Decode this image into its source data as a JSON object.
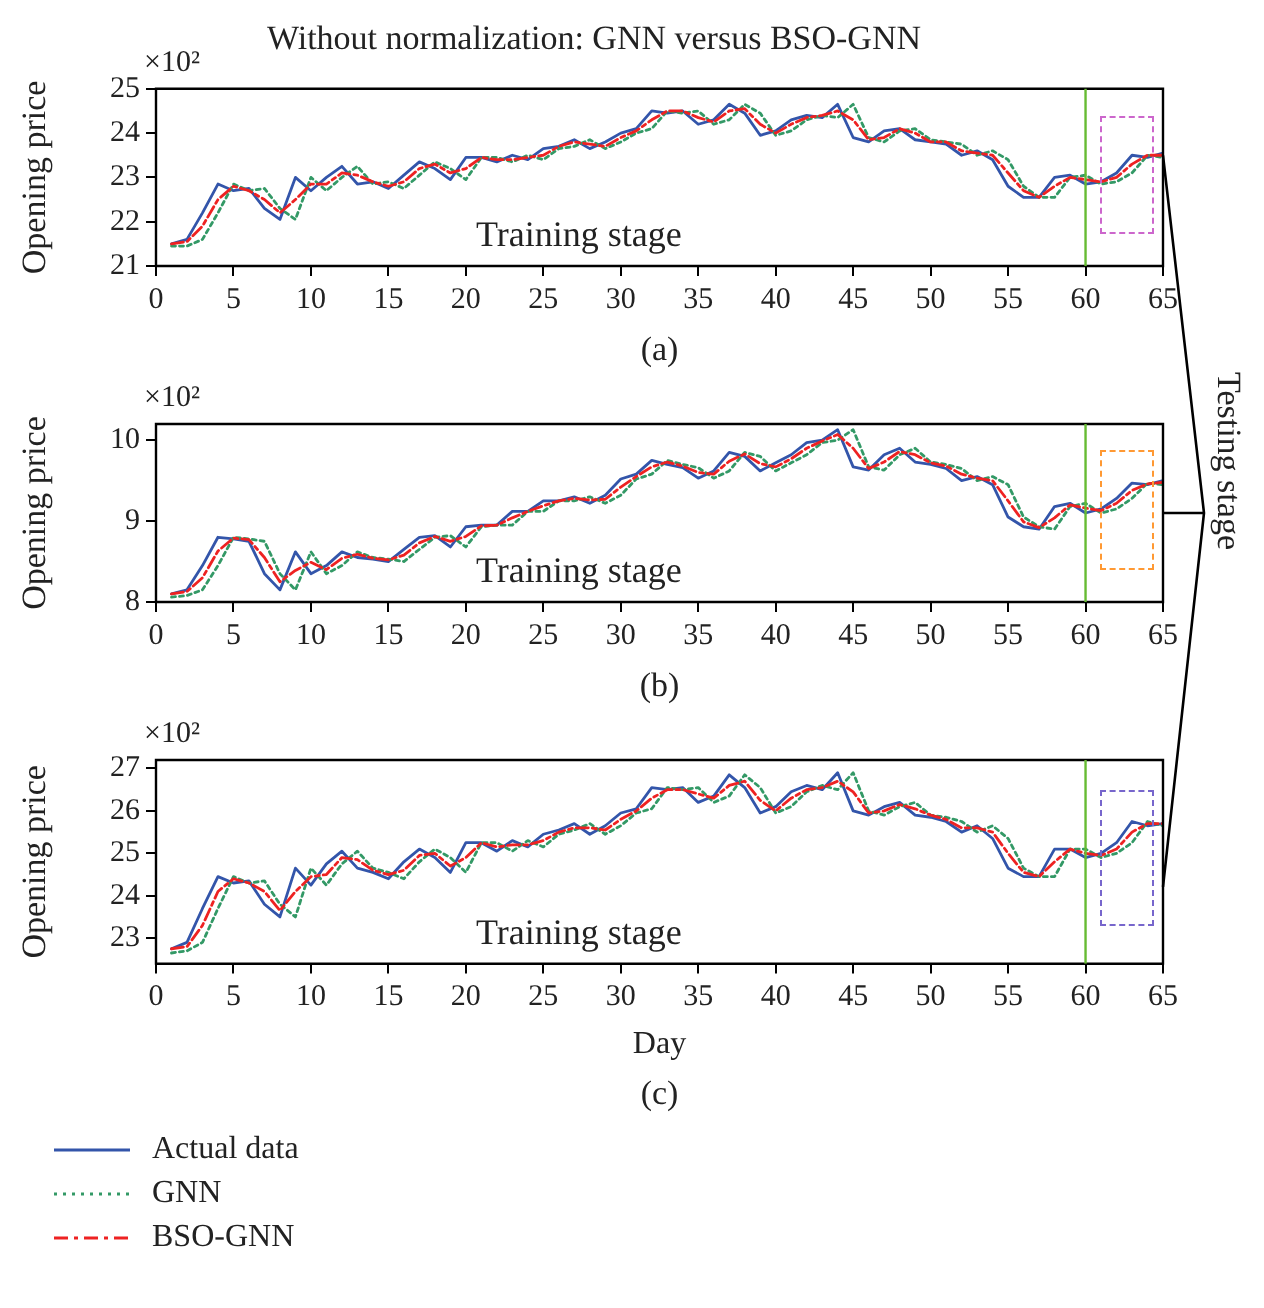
{
  "chart_data": [
    {
      "type": "line",
      "title": "Without normalization: GNN versus BSO-GNN",
      "ylabel": "Opening price",
      "annotations": [
        "Training stage",
        "×10²",
        "(a)"
      ],
      "x": [
        1,
        2,
        3,
        4,
        5,
        6,
        7,
        8,
        9,
        10,
        11,
        12,
        13,
        14,
        15,
        16,
        17,
        18,
        19,
        20,
        21,
        22,
        23,
        24,
        25,
        26,
        27,
        28,
        29,
        30,
        31,
        32,
        33,
        34,
        35,
        36,
        37,
        38,
        39,
        40,
        41,
        42,
        43,
        44,
        45,
        46,
        47,
        48,
        49,
        50,
        51,
        52,
        53,
        54,
        55,
        56,
        57,
        58,
        59,
        60,
        61,
        62,
        63,
        64,
        65
      ],
      "xlim": [
        0,
        65
      ],
      "xticks": [
        0,
        5,
        10,
        15,
        20,
        25,
        30,
        35,
        40,
        45,
        50,
        55,
        60,
        65
      ],
      "ylim": [
        21,
        25
      ],
      "yticks": [
        21,
        22,
        23,
        24,
        25
      ],
      "ref_lines": [
        {
          "axis": "x",
          "value": 60,
          "color": "#66bb33"
        }
      ],
      "series": [
        {
          "color": "#3355aa",
          "line_style": "solid",
          "values": [
            21.5,
            21.6,
            22.2,
            22.85,
            22.7,
            22.75,
            22.3,
            22.05,
            23.0,
            22.7,
            23.0,
            23.25,
            22.85,
            22.9,
            22.75,
            23.05,
            23.35,
            23.2,
            22.95,
            23.45,
            23.45,
            23.35,
            23.5,
            23.4,
            23.65,
            23.7,
            23.85,
            23.65,
            23.8,
            24.0,
            24.1,
            24.5,
            24.45,
            24.5,
            24.2,
            24.3,
            24.65,
            24.45,
            23.95,
            24.05,
            24.3,
            24.4,
            24.35,
            24.65,
            23.9,
            23.8,
            24.05,
            24.1,
            23.85,
            23.8,
            23.75,
            23.5,
            23.6,
            23.4,
            22.8,
            22.55,
            22.55,
            23.0,
            23.05,
            22.85,
            22.9,
            23.1,
            23.5,
            23.45,
            23.55
          ]
        },
        {
          "color": "#339966",
          "line_style": "dotted",
          "values": [
            21.45,
            21.45,
            21.6,
            22.2,
            22.85,
            22.7,
            22.75,
            22.3,
            22.05,
            23.0,
            22.7,
            23.0,
            23.25,
            22.85,
            22.9,
            22.75,
            23.05,
            23.35,
            23.2,
            22.95,
            23.45,
            23.45,
            23.35,
            23.5,
            23.4,
            23.65,
            23.7,
            23.85,
            23.65,
            23.8,
            24.0,
            24.1,
            24.5,
            24.45,
            24.5,
            24.2,
            24.3,
            24.65,
            24.45,
            23.95,
            24.05,
            24.3,
            24.4,
            24.35,
            24.65,
            23.9,
            23.8,
            24.05,
            24.1,
            23.85,
            23.8,
            23.75,
            23.5,
            23.6,
            23.4,
            22.8,
            22.55,
            22.55,
            23.0,
            23.05,
            22.85,
            22.9,
            23.1,
            23.5,
            23.45
          ]
        },
        {
          "color": "#ee2222",
          "line_style": "dashed",
          "values": [
            21.5,
            21.55,
            21.9,
            22.5,
            22.8,
            22.7,
            22.5,
            22.2,
            22.5,
            22.85,
            22.85,
            23.1,
            23.05,
            22.9,
            22.8,
            22.9,
            23.2,
            23.3,
            23.1,
            23.2,
            23.45,
            23.4,
            23.4,
            23.45,
            23.5,
            23.7,
            23.8,
            23.75,
            23.7,
            23.9,
            24.05,
            24.3,
            24.5,
            24.5,
            24.35,
            24.25,
            24.5,
            24.55,
            24.2,
            24.0,
            24.2,
            24.35,
            24.4,
            24.5,
            24.3,
            23.85,
            23.9,
            24.1,
            24.0,
            23.8,
            23.8,
            23.6,
            23.55,
            23.5,
            23.1,
            22.7,
            22.55,
            22.8,
            23.0,
            22.95,
            22.9,
            23.0,
            23.3,
            23.5,
            23.5
          ]
        }
      ]
    },
    {
      "type": "line",
      "ylabel": "Opening price",
      "annotations": [
        "Training stage",
        "×10²",
        "(b)",
        "Testing stage"
      ],
      "x": [
        1,
        2,
        3,
        4,
        5,
        6,
        7,
        8,
        9,
        10,
        11,
        12,
        13,
        14,
        15,
        16,
        17,
        18,
        19,
        20,
        21,
        22,
        23,
        24,
        25,
        26,
        27,
        28,
        29,
        30,
        31,
        32,
        33,
        34,
        35,
        36,
        37,
        38,
        39,
        40,
        41,
        42,
        43,
        44,
        45,
        46,
        47,
        48,
        49,
        50,
        51,
        52,
        53,
        54,
        55,
        56,
        57,
        58,
        59,
        60,
        61,
        62,
        63,
        64,
        65
      ],
      "xlim": [
        0,
        65
      ],
      "xticks": [
        0,
        5,
        10,
        15,
        20,
        25,
        30,
        35,
        40,
        45,
        50,
        55,
        60,
        65
      ],
      "ylim": [
        8,
        10.2
      ],
      "yticks": [
        8,
        9,
        10
      ],
      "ref_lines": [
        {
          "axis": "x",
          "value": 60,
          "color": "#66bb33"
        }
      ],
      "series": [
        {
          "color": "#3355aa",
          "line_style": "solid",
          "values": [
            8.1,
            8.15,
            8.45,
            8.8,
            8.78,
            8.75,
            8.35,
            8.15,
            8.62,
            8.35,
            8.45,
            8.62,
            8.55,
            8.53,
            8.5,
            8.65,
            8.8,
            8.82,
            8.68,
            8.93,
            8.95,
            8.95,
            9.12,
            9.12,
            9.25,
            9.25,
            9.3,
            9.22,
            9.32,
            9.52,
            9.58,
            9.75,
            9.7,
            9.66,
            9.53,
            9.62,
            9.85,
            9.8,
            9.62,
            9.72,
            9.82,
            9.97,
            10.0,
            10.13,
            9.67,
            9.63,
            9.82,
            9.9,
            9.73,
            9.7,
            9.65,
            9.5,
            9.55,
            9.45,
            9.05,
            8.93,
            8.9,
            9.18,
            9.22,
            9.1,
            9.15,
            9.28,
            9.47,
            9.45,
            9.5
          ]
        },
        {
          "color": "#339966",
          "line_style": "dotted",
          "values": [
            8.06,
            8.08,
            8.15,
            8.45,
            8.8,
            8.78,
            8.75,
            8.35,
            8.15,
            8.62,
            8.35,
            8.45,
            8.62,
            8.55,
            8.53,
            8.5,
            8.65,
            8.8,
            8.82,
            8.68,
            8.93,
            8.95,
            8.95,
            9.12,
            9.12,
            9.25,
            9.25,
            9.3,
            9.22,
            9.32,
            9.52,
            9.58,
            9.75,
            9.7,
            9.66,
            9.53,
            9.62,
            9.85,
            9.8,
            9.62,
            9.72,
            9.82,
            9.97,
            10.0,
            10.13,
            9.67,
            9.63,
            9.82,
            9.9,
            9.73,
            9.7,
            9.65,
            9.5,
            9.55,
            9.45,
            9.05,
            8.93,
            8.9,
            9.18,
            9.22,
            9.1,
            9.15,
            9.28,
            9.47,
            9.45
          ]
        },
        {
          "color": "#ee2222",
          "line_style": "dashed",
          "values": [
            8.1,
            8.13,
            8.3,
            8.63,
            8.79,
            8.77,
            8.55,
            8.25,
            8.39,
            8.49,
            8.4,
            8.54,
            8.59,
            8.54,
            8.52,
            8.58,
            8.73,
            8.81,
            8.75,
            8.81,
            8.94,
            8.95,
            9.04,
            9.12,
            9.19,
            9.25,
            9.28,
            9.26,
            9.27,
            9.42,
            9.55,
            9.67,
            9.73,
            9.68,
            9.6,
            9.58,
            9.74,
            9.83,
            9.71,
            9.67,
            9.77,
            9.9,
            9.99,
            10.07,
            9.9,
            9.65,
            9.73,
            9.86,
            9.82,
            9.72,
            9.68,
            9.58,
            9.53,
            9.5,
            9.25,
            8.99,
            8.92,
            9.04,
            9.2,
            9.16,
            9.13,
            9.22,
            9.38,
            9.46,
            9.48
          ]
        }
      ]
    },
    {
      "type": "line",
      "xlabel": "Day",
      "ylabel": "Opening price",
      "annotations": [
        "Training stage",
        "×10²",
        "(c)"
      ],
      "legend": "bottom left",
      "x": [
        1,
        2,
        3,
        4,
        5,
        6,
        7,
        8,
        9,
        10,
        11,
        12,
        13,
        14,
        15,
        16,
        17,
        18,
        19,
        20,
        21,
        22,
        23,
        24,
        25,
        26,
        27,
        28,
        29,
        30,
        31,
        32,
        33,
        34,
        35,
        36,
        37,
        38,
        39,
        40,
        41,
        42,
        43,
        44,
        45,
        46,
        47,
        48,
        49,
        50,
        51,
        52,
        53,
        54,
        55,
        56,
        57,
        58,
        59,
        60,
        61,
        62,
        63,
        64,
        65
      ],
      "xlim": [
        0,
        65
      ],
      "xticks": [
        0,
        5,
        10,
        15,
        20,
        25,
        30,
        35,
        40,
        45,
        50,
        55,
        60,
        65
      ],
      "ylim": [
        22.4,
        27.2
      ],
      "yticks": [
        23,
        24,
        25,
        26,
        27
      ],
      "ref_lines": [
        {
          "axis": "x",
          "value": 60,
          "color": "#66bb33"
        }
      ],
      "series": [
        {
          "name": "Actual data",
          "color": "#3355aa",
          "line_style": "solid",
          "values": [
            22.75,
            22.9,
            23.7,
            24.45,
            24.3,
            24.35,
            23.8,
            23.5,
            24.65,
            24.25,
            24.75,
            25.05,
            24.65,
            24.55,
            24.4,
            24.8,
            25.1,
            24.9,
            24.55,
            25.25,
            25.25,
            25.05,
            25.3,
            25.15,
            25.45,
            25.55,
            25.7,
            25.45,
            25.65,
            25.95,
            26.05,
            26.55,
            26.5,
            26.55,
            26.2,
            26.35,
            26.85,
            26.55,
            25.95,
            26.1,
            26.45,
            26.6,
            26.5,
            26.9,
            26.0,
            25.9,
            26.1,
            26.2,
            25.9,
            25.85,
            25.75,
            25.5,
            25.65,
            25.35,
            24.65,
            24.45,
            24.45,
            25.1,
            25.1,
            24.9,
            25.0,
            25.25,
            25.75,
            25.65,
            25.7
          ]
        },
        {
          "name": "GNN",
          "color": "#339966",
          "line_style": "dotted",
          "values": [
            22.65,
            22.7,
            22.9,
            23.7,
            24.45,
            24.3,
            24.35,
            23.8,
            23.5,
            24.65,
            24.25,
            24.75,
            25.05,
            24.65,
            24.55,
            24.4,
            24.8,
            25.1,
            24.9,
            24.55,
            25.25,
            25.25,
            25.05,
            25.3,
            25.15,
            25.45,
            25.55,
            25.7,
            25.45,
            25.65,
            25.95,
            26.05,
            26.55,
            26.5,
            26.55,
            26.2,
            26.35,
            26.85,
            26.55,
            25.95,
            26.1,
            26.45,
            26.6,
            26.5,
            26.9,
            26.0,
            25.9,
            26.1,
            26.2,
            25.9,
            25.85,
            25.75,
            25.5,
            25.65,
            25.35,
            24.65,
            24.45,
            24.45,
            25.1,
            25.1,
            24.9,
            25.0,
            25.25,
            25.75,
            25.65
          ]
        },
        {
          "name": "BSO-GNN",
          "color": "#ee2222",
          "line_style": "dashed",
          "values": [
            22.75,
            22.8,
            23.3,
            24.1,
            24.4,
            24.3,
            24.1,
            23.65,
            24.1,
            24.45,
            24.5,
            24.9,
            24.85,
            24.6,
            24.5,
            24.6,
            24.95,
            25.0,
            24.7,
            24.9,
            25.25,
            25.15,
            25.2,
            25.2,
            25.3,
            25.5,
            25.6,
            25.6,
            25.55,
            25.8,
            26.0,
            26.3,
            26.5,
            26.5,
            26.4,
            26.3,
            26.6,
            26.7,
            26.25,
            26.0,
            26.3,
            26.5,
            26.55,
            26.7,
            26.45,
            25.95,
            26.0,
            26.15,
            26.05,
            25.9,
            25.8,
            25.6,
            25.6,
            25.5,
            25.0,
            24.55,
            24.45,
            24.8,
            25.1,
            25.0,
            24.95,
            25.1,
            25.5,
            25.7,
            25.7
          ]
        }
      ]
    }
  ]
}
